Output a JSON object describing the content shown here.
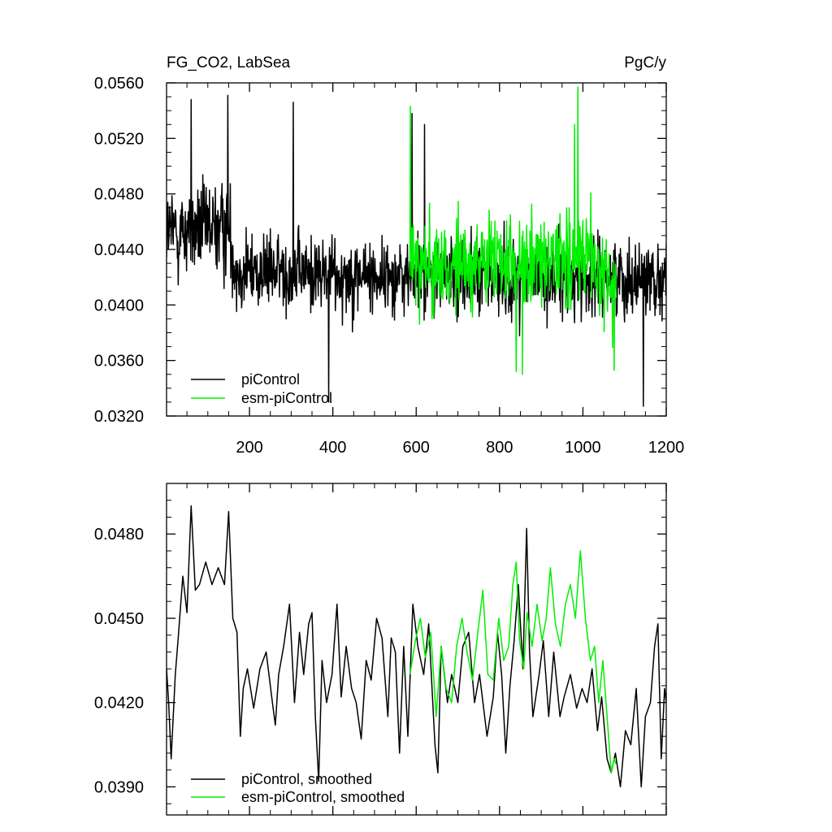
{
  "colors": {
    "piControl": "#000000",
    "esm": "#00ee00"
  },
  "chart_data": [
    {
      "type": "line",
      "title_left": "FG_CO2, LabSea",
      "title_right": "PgC/y",
      "xlim": [
        1,
        1200
      ],
      "ylim": [
        0.032,
        0.056
      ],
      "x_ticks": [
        200,
        400,
        600,
        800,
        1000,
        1200
      ],
      "x_tick_labels": [
        "200",
        "400",
        "600",
        "800",
        "1000",
        "1200"
      ],
      "y_ticks": [
        0.032,
        0.036,
        0.04,
        0.044,
        0.048,
        0.052,
        0.056
      ],
      "y_tick_labels": [
        "0.0320",
        "0.0360",
        "0.0400",
        "0.0440",
        "0.0480",
        "0.0520",
        "0.0560"
      ],
      "legend_position": "bottom-left",
      "legend": [
        "piControl",
        "esm-piControl"
      ],
      "series": [
        {
          "name": "piControl",
          "color": "#000000",
          "x_range": [
            1,
            1200
          ],
          "mean_profile": [
            [
              1,
              0.0452
            ],
            [
              150,
              0.0455
            ],
            [
              170,
              0.0425
            ],
            [
              580,
              0.042
            ],
            [
              850,
              0.042
            ],
            [
              1000,
              0.042
            ],
            [
              1200,
              0.042
            ]
          ],
          "sd_profile": [
            [
              1,
              0.003
            ],
            [
              170,
              0.003
            ],
            [
              171,
              0.0025
            ],
            [
              1200,
              0.0025
            ]
          ],
          "extremes": [
            [
              60,
              0.0548
            ],
            [
              148,
              0.0551
            ],
            [
              305,
              0.0546
            ],
            [
              390,
              0.033
            ],
            [
              1145,
              0.0327
            ],
            [
              590,
              0.0538
            ],
            [
              620,
              0.053
            ]
          ]
        },
        {
          "name": "esm-piControl",
          "color": "#00ee00",
          "x_range": [
            585,
            1080
          ],
          "mean_profile": [
            [
              585,
              0.043
            ],
            [
              800,
              0.0428
            ],
            [
              1000,
              0.0432
            ],
            [
              1080,
              0.0415
            ]
          ],
          "sd_profile": [
            [
              585,
              0.003
            ],
            [
              1080,
              0.003
            ]
          ],
          "extremes": [
            [
              586,
              0.0543
            ],
            [
              988,
              0.0557
            ],
            [
              980,
              0.053
            ],
            [
              855,
              0.035
            ],
            [
              840,
              0.0352
            ],
            [
              1075,
              0.0353
            ]
          ]
        }
      ]
    },
    {
      "type": "line",
      "xlim": [
        1,
        1200
      ],
      "ylim": [
        0.038,
        0.0498
      ],
      "x_ticks": [
        200,
        400,
        600,
        800,
        1000,
        1200
      ],
      "y_ticks": [
        0.039,
        0.042,
        0.045,
        0.048
      ],
      "y_tick_labels": [
        "0.0390",
        "0.0420",
        "0.0450",
        "0.0480"
      ],
      "legend_position": "bottom-left",
      "legend": [
        "piControl, smoothed",
        "esm-piControl, smoothed"
      ],
      "series": [
        {
          "name": "piControl, smoothed",
          "color": "#000000",
          "x_range": [
            1,
            1200
          ],
          "points": [
            [
              1,
              0.0432
            ],
            [
              6,
              0.042
            ],
            [
              12,
              0.04
            ],
            [
              22,
              0.043
            ],
            [
              30,
              0.0445
            ],
            [
              40,
              0.0465
            ],
            [
              50,
              0.0452
            ],
            [
              60,
              0.049
            ],
            [
              70,
              0.046
            ],
            [
              80,
              0.0462
            ],
            [
              95,
              0.047
            ],
            [
              110,
              0.0462
            ],
            [
              125,
              0.0468
            ],
            [
              140,
              0.0462
            ],
            [
              150,
              0.0488
            ],
            [
              160,
              0.045
            ],
            [
              170,
              0.0445
            ],
            [
              178,
              0.0408
            ],
            [
              185,
              0.0425
            ],
            [
              195,
              0.0432
            ],
            [
              210,
              0.0418
            ],
            [
              225,
              0.0432
            ],
            [
              240,
              0.0438
            ],
            [
              255,
              0.042
            ],
            [
              262,
              0.0412
            ],
            [
              270,
              0.043
            ],
            [
              282,
              0.044
            ],
            [
              296,
              0.0455
            ],
            [
              308,
              0.042
            ],
            [
              320,
              0.0445
            ],
            [
              330,
              0.043
            ],
            [
              342,
              0.0448
            ],
            [
              350,
              0.0452
            ],
            [
              358,
              0.0415
            ],
            [
              366,
              0.0392
            ],
            [
              374,
              0.0435
            ],
            [
              385,
              0.042
            ],
            [
              398,
              0.043
            ],
            [
              410,
              0.0455
            ],
            [
              420,
              0.0422
            ],
            [
              432,
              0.044
            ],
            [
              445,
              0.0425
            ],
            [
              456,
              0.042
            ],
            [
              468,
              0.0407
            ],
            [
              480,
              0.0435
            ],
            [
              492,
              0.0428
            ],
            [
              505,
              0.045
            ],
            [
              518,
              0.0443
            ],
            [
              532,
              0.0415
            ],
            [
              540,
              0.0443
            ],
            [
              550,
              0.0438
            ],
            [
              560,
              0.0402
            ],
            [
              570,
              0.044
            ],
            [
              580,
              0.0408
            ],
            [
              592,
              0.0455
            ],
            [
              604,
              0.044
            ],
            [
              618,
              0.043
            ],
            [
              630,
              0.0448
            ],
            [
              645,
              0.0405
            ],
            [
              652,
              0.0395
            ],
            [
              660,
              0.044
            ],
            [
              675,
              0.042
            ],
            [
              685,
              0.043
            ],
            [
              700,
              0.042
            ],
            [
              712,
              0.044
            ],
            [
              726,
              0.0445
            ],
            [
              740,
              0.042
            ],
            [
              752,
              0.043
            ],
            [
              770,
              0.0408
            ],
            [
              785,
              0.0422
            ],
            [
              795,
              0.0445
            ],
            [
              805,
              0.043
            ],
            [
              815,
              0.0402
            ],
            [
              825,
              0.0426
            ],
            [
              835,
              0.0442
            ],
            [
              845,
              0.0462
            ],
            [
              856,
              0.0432
            ],
            [
              865,
              0.0482
            ],
            [
              872,
              0.0438
            ],
            [
              880,
              0.0415
            ],
            [
              895,
              0.043
            ],
            [
              905,
              0.0442
            ],
            [
              918,
              0.0415
            ],
            [
              930,
              0.0438
            ],
            [
              945,
              0.0415
            ],
            [
              955,
              0.0422
            ],
            [
              970,
              0.043
            ],
            [
              985,
              0.0418
            ],
            [
              998,
              0.0425
            ],
            [
              1010,
              0.042
            ],
            [
              1022,
              0.0432
            ],
            [
              1035,
              0.041
            ],
            [
              1045,
              0.0422
            ],
            [
              1058,
              0.04
            ],
            [
              1068,
              0.0395
            ],
            [
              1078,
              0.0402
            ],
            [
              1090,
              0.039
            ],
            [
              1102,
              0.041
            ],
            [
              1115,
              0.0405
            ],
            [
              1128,
              0.0425
            ],
            [
              1140,
              0.039
            ],
            [
              1150,
              0.0415
            ],
            [
              1162,
              0.042
            ],
            [
              1172,
              0.044
            ],
            [
              1180,
              0.0448
            ],
            [
              1188,
              0.04
            ],
            [
              1196,
              0.0425
            ],
            [
              1200,
              0.042
            ]
          ]
        },
        {
          "name": "esm-piControl, smoothed",
          "color": "#00ee00",
          "x_range": [
            585,
            1080
          ],
          "points": [
            [
              585,
              0.043
            ],
            [
              598,
              0.0442
            ],
            [
              610,
              0.045
            ],
            [
              622,
              0.0436
            ],
            [
              635,
              0.0445
            ],
            [
              648,
              0.0415
            ],
            [
              660,
              0.044
            ],
            [
              672,
              0.0425
            ],
            [
              685,
              0.042
            ],
            [
              697,
              0.044
            ],
            [
              710,
              0.045
            ],
            [
              722,
              0.0438
            ],
            [
              735,
              0.0428
            ],
            [
              748,
              0.0445
            ],
            [
              760,
              0.046
            ],
            [
              772,
              0.043
            ],
            [
              785,
              0.0428
            ],
            [
              798,
              0.045
            ],
            [
              810,
              0.0435
            ],
            [
              822,
              0.044
            ],
            [
              832,
              0.0462
            ],
            [
              840,
              0.047
            ],
            [
              848,
              0.0442
            ],
            [
              858,
              0.0432
            ],
            [
              866,
              0.0452
            ],
            [
              878,
              0.044
            ],
            [
              890,
              0.0455
            ],
            [
              902,
              0.0442
            ],
            [
              912,
              0.045
            ],
            [
              922,
              0.0468
            ],
            [
              934,
              0.0448
            ],
            [
              946,
              0.044
            ],
            [
              958,
              0.0455
            ],
            [
              970,
              0.0462
            ],
            [
              982,
              0.045
            ],
            [
              994,
              0.0474
            ],
            [
              1006,
              0.045
            ],
            [
              1018,
              0.0435
            ],
            [
              1028,
              0.044
            ],
            [
              1038,
              0.042
            ],
            [
              1048,
              0.0435
            ],
            [
              1058,
              0.0415
            ],
            [
              1068,
              0.0395
            ],
            [
              1075,
              0.04
            ],
            [
              1080,
              0.0398
            ]
          ]
        }
      ]
    }
  ]
}
